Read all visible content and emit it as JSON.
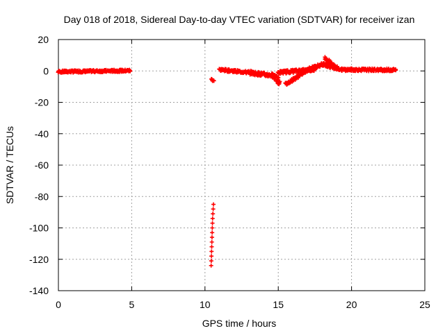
{
  "chart_data": {
    "type": "scatter",
    "title": "Day 018 of 2018, Sidereal Day-to-day VTEC variation (SDTVAR) for receiver izan",
    "xlabel": "GPS time / hours",
    "ylabel": "SDTVAR / TECUs",
    "xlim": [
      0,
      25
    ],
    "ylim": [
      -140,
      20
    ],
    "xticks": [
      0,
      5,
      10,
      15,
      20,
      25
    ],
    "yticks": [
      20,
      0,
      -20,
      -40,
      -60,
      -80,
      -100,
      -120,
      -140
    ],
    "grid": true,
    "marker": "+",
    "color": "#ff0000",
    "series": [
      {
        "name": "SDTVAR",
        "segments": [
          {
            "x0": 0.0,
            "x1": 4.9,
            "step": 0.05,
            "y0": -0.5,
            "y1": 0.2,
            "spread": 0.7
          },
          {
            "x0": 10.45,
            "x1": 10.6,
            "step": 0.05,
            "y0": -5.5,
            "y1": -6.0,
            "spread": 0.8
          },
          {
            "x0": 11.0,
            "x1": 13.0,
            "step": 0.05,
            "y0": 0.8,
            "y1": -1.0,
            "spread": 0.8
          },
          {
            "x0": 13.0,
            "x1": 15.0,
            "step": 0.05,
            "y0": -1.0,
            "y1": -3.5,
            "spread": 1.2
          },
          {
            "x0": 14.6,
            "x1": 15.1,
            "step": 0.05,
            "y0": -3.0,
            "y1": -8.0,
            "spread": 1.5
          },
          {
            "x0": 15.0,
            "x1": 17.5,
            "step": 0.05,
            "y0": -1.0,
            "y1": 1.0,
            "spread": 1.0
          },
          {
            "x0": 15.5,
            "x1": 17.0,
            "step": 0.05,
            "y0": -8.5,
            "y1": 0.5,
            "spread": 1.0
          },
          {
            "x0": 17.0,
            "x1": 18.3,
            "step": 0.05,
            "y0": 1.0,
            "y1": 5.0,
            "spread": 1.0
          },
          {
            "x0": 18.2,
            "x1": 19.0,
            "step": 0.05,
            "y0": 8.0,
            "y1": 2.0,
            "spread": 1.0
          },
          {
            "x0": 18.0,
            "x1": 19.3,
            "step": 0.05,
            "y0": 4.0,
            "y1": 1.0,
            "spread": 0.8
          },
          {
            "x0": 19.3,
            "x1": 23.0,
            "step": 0.05,
            "y0": 0.8,
            "y1": 0.6,
            "spread": 0.8
          }
        ],
        "vertical_run": [
          [
            10.42,
            -124
          ],
          [
            10.43,
            -121
          ],
          [
            10.44,
            -118
          ],
          [
            10.45,
            -115
          ],
          [
            10.46,
            -112
          ],
          [
            10.47,
            -109
          ],
          [
            10.48,
            -106
          ],
          [
            10.49,
            -103
          ],
          [
            10.5,
            -100
          ],
          [
            10.51,
            -97
          ],
          [
            10.52,
            -94
          ],
          [
            10.54,
            -91
          ],
          [
            10.56,
            -88
          ],
          [
            10.58,
            -85
          ]
        ]
      }
    ]
  }
}
